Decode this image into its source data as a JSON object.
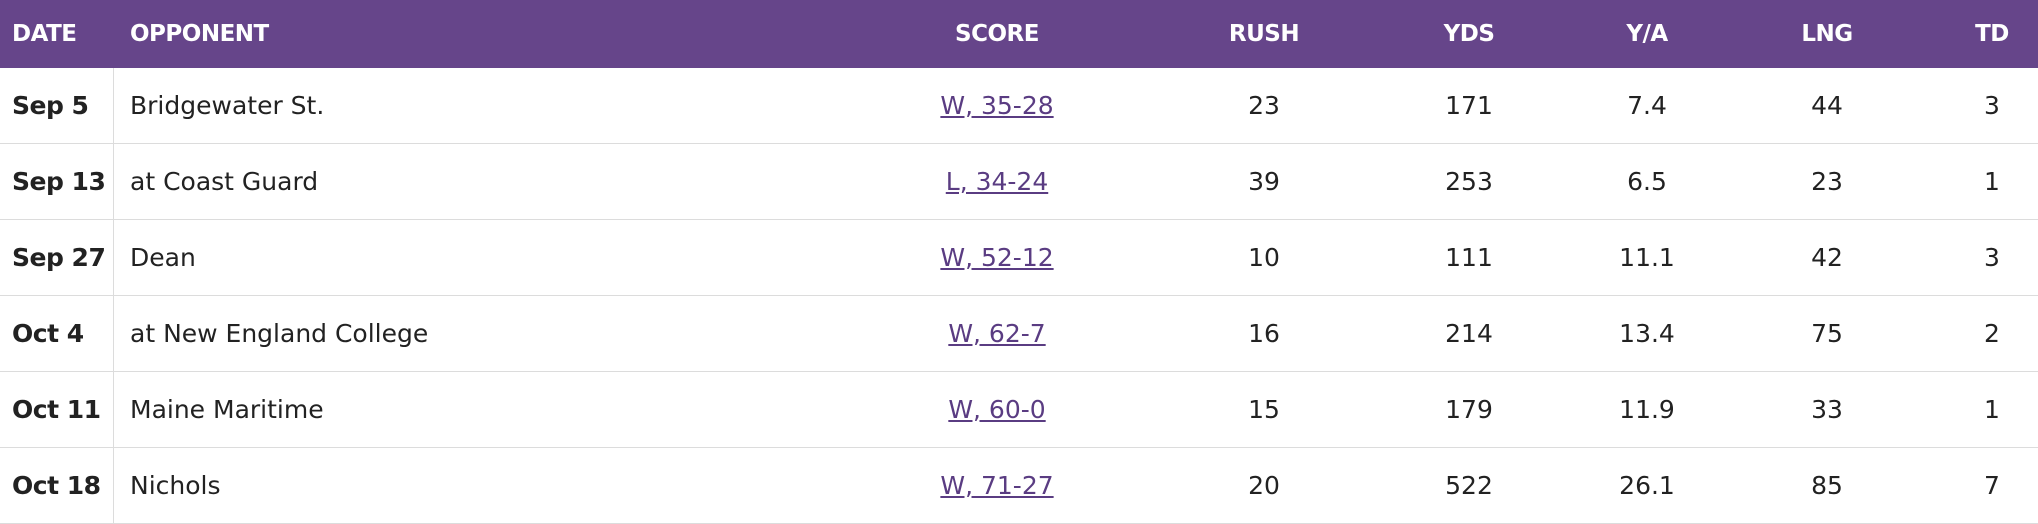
{
  "table": {
    "headers": [
      "DATE",
      "OPPONENT",
      "SCORE",
      "RUSH",
      "YDS",
      "Y/A",
      "LNG",
      "TD"
    ],
    "rows": [
      [
        "Sep 5",
        "Bridgewater St.",
        "W, 35-28",
        23,
        171,
        7.4,
        44,
        3
      ],
      [
        "Sep 13",
        "at Coast Guard",
        "L, 34-24",
        39,
        253,
        6.5,
        23,
        1
      ],
      [
        "Sep 27",
        "Dean",
        "W, 52-12",
        10,
        111,
        11.1,
        42,
        3
      ],
      [
        "Oct 4",
        "at New England College",
        "W, 62-7",
        16,
        214,
        13.4,
        75,
        2
      ],
      [
        "Oct 11",
        "Maine Maritime",
        "W, 60-0",
        15,
        179,
        11.9,
        33,
        1
      ],
      [
        "Oct 18",
        "Nichols",
        "W, 71-27",
        20,
        522,
        26.1,
        85,
        7
      ]
    ]
  }
}
